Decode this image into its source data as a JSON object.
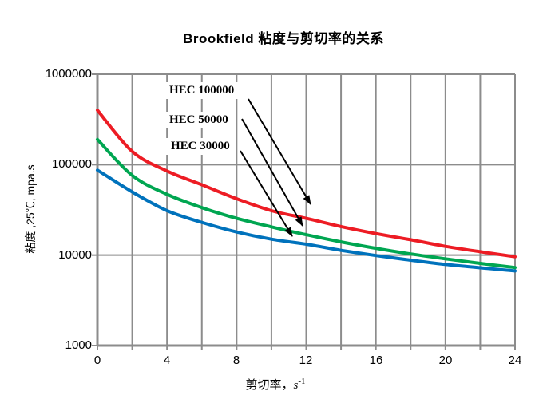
{
  "title": "Brookfield 粘度与剪切率的关系",
  "chart_data": {
    "type": "line",
    "title": "Brookfield 粘度与剪切率的关系",
    "xlabel": {
      "prefix": "剪切率，",
      "unit_base": "s",
      "unit_sup": "-1"
    },
    "ylabel": "粘度 ,25℃, mpa.s",
    "x_ticks": [
      "0",
      "4",
      "8",
      "12",
      "16",
      "20",
      "24"
    ],
    "y_ticks": [
      "1000000",
      "100000",
      "10000",
      "1000"
    ],
    "x_range": [
      0,
      24
    ],
    "y_range": [
      1000,
      1000000
    ],
    "y_scale": "log",
    "x_gridline_step": 2,
    "grid": "on",
    "legend_position": "inline-labels-with-arrows",
    "x": [
      0,
      2,
      4,
      6,
      8,
      10,
      12,
      14,
      16,
      18,
      20,
      22,
      24
    ],
    "series": [
      {
        "name": "HEC 100000",
        "color": "#ed1c24",
        "values": [
          400000,
          140000,
          85000,
          60000,
          42000,
          31000,
          25500,
          20700,
          17300,
          14800,
          12500,
          10900,
          9600
        ]
      },
      {
        "name": "HEC 50000",
        "color": "#00a651",
        "values": [
          190000,
          76000,
          47000,
          33500,
          25500,
          20500,
          16800,
          14000,
          11900,
          10300,
          9100,
          8100,
          7300
        ]
      },
      {
        "name": "HEC 30000",
        "color": "#0072bc",
        "values": [
          87000,
          50000,
          31000,
          23000,
          18000,
          15000,
          13200,
          11300,
          9900,
          8800,
          7900,
          7250,
          6700
        ]
      }
    ],
    "annotations": [
      {
        "label": "HEC 100000",
        "arrow_points_to_x": 12.2
      },
      {
        "label": "HEC 50000",
        "arrow_points_to_x": 11.8
      },
      {
        "label": "HEC 30000",
        "arrow_points_to_x": 11.2
      }
    ],
    "colors": {
      "grid": "#8c8c8c",
      "axis": "#8c8c8c",
      "text": "#000000",
      "arrow": "#000000"
    }
  }
}
